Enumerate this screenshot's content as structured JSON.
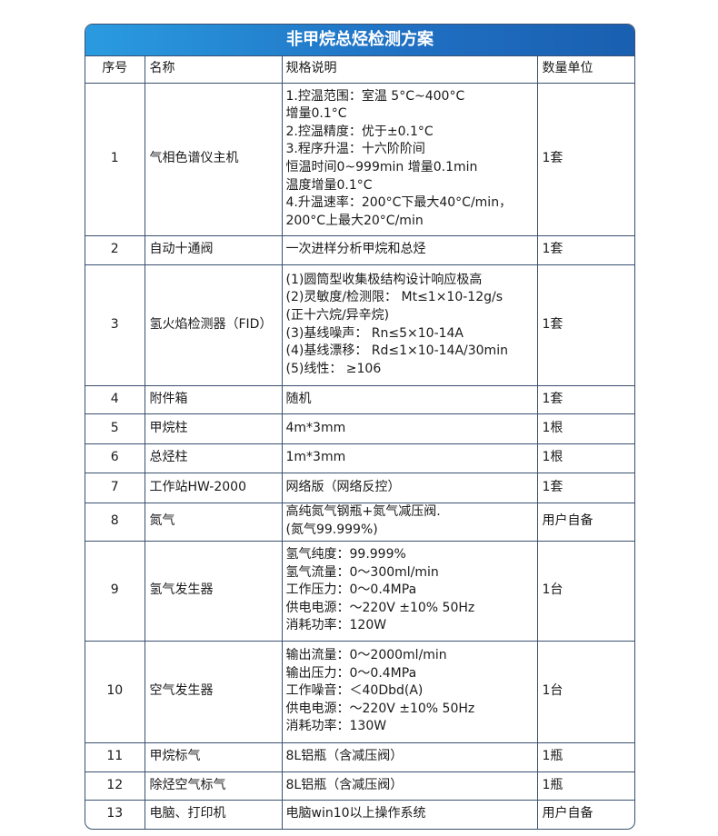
{
  "title": "非甲烷总烃检测方案",
  "colors": {
    "header_blue": "#1f6fc2",
    "border": "#3a5070"
  },
  "headers": [
    "序号",
    "名称",
    "规格说明",
    "数量单位"
  ],
  "rows": [
    {
      "no": "1",
      "name": "气相色谱仪主机",
      "spec": [
        "1.控温范围：室温 5°C~400°C",
        "增量0.1°C",
        "2.控温精度：优于±0.1°C",
        "3.程序升温：十六阶阶间",
        "恒温时间0~999min 增量0.1min",
        "温度增量0.1°C",
        "4.升温速率：200°C下最大40°C/min，",
        " 200°C上最大20°C/min"
      ],
      "qty": "1套"
    },
    {
      "no": "2",
      "name": "自动十通阀",
      "spec": [
        "一次进样分析甲烷和总烃"
      ],
      "qty": "1套"
    },
    {
      "no": "3",
      "name": "氢火焰检测器（FID）",
      "spec": [
        "(1)圆筒型收集极结构设计响应极高",
        "(2)灵敏度/检测限： Mt≤1×10-12g/s",
        "(正十六烷/异辛烷)",
        "(3)基线噪声： Rn≤5×10-14A",
        "(4)基线漂移： Rd≤1×10-14A/30min",
        "(5)线性： ≥106"
      ],
      "qty": "1套"
    },
    {
      "no": "4",
      "name": "附件箱",
      "spec": [
        "随机"
      ],
      "qty": "1套"
    },
    {
      "no": "5",
      "name": "甲烷柱",
      "spec": [
        "4m*3mm"
      ],
      "qty": "1根"
    },
    {
      "no": "6",
      "name": "总烃柱",
      "spec": [
        "1m*3mm"
      ],
      "qty": "1根"
    },
    {
      "no": "7",
      "name": "工作站HW-2000",
      "spec": [
        "网络版（网络反控）"
      ],
      "qty": "1套"
    },
    {
      "no": "8",
      "name": "氮气",
      "spec": [
        "高纯氮气钢瓶+氮气减压阀.",
        "(氮气99.999%)"
      ],
      "qty": "用户自备"
    },
    {
      "no": "9",
      "name": "氢气发生器",
      "spec": [
        "氢气纯度：99.999%",
        "氢气流量：0～300ml/min",
        "工作压力：0～0.4MPa",
        "供电电源：～220V ±10% 50Hz",
        "消耗功率：120W"
      ],
      "qty": "1台"
    },
    {
      "no": "10",
      "name": "空气发生器",
      "spec": [
        "输出流量：0～2000ml/min",
        "输出压力：0～0.4MPa",
        "工作噪音：＜40Dbd(A)",
        "供电电源：～220V ±10% 50Hz",
        "消耗功率：130W"
      ],
      "qty": "1台"
    },
    {
      "no": "11",
      "name": "甲烷标气",
      "spec": [
        "8L铝瓶（含减压阀）"
      ],
      "qty": "1瓶"
    },
    {
      "no": "12",
      "name": "除烃空气标气",
      "spec": [
        "8L铝瓶（含减压阀）"
      ],
      "qty": "1瓶"
    },
    {
      "no": "13",
      "name": "电脑、打印机",
      "spec": [
        "电脑win10以上操作系统"
      ],
      "qty": "用户自备"
    }
  ]
}
